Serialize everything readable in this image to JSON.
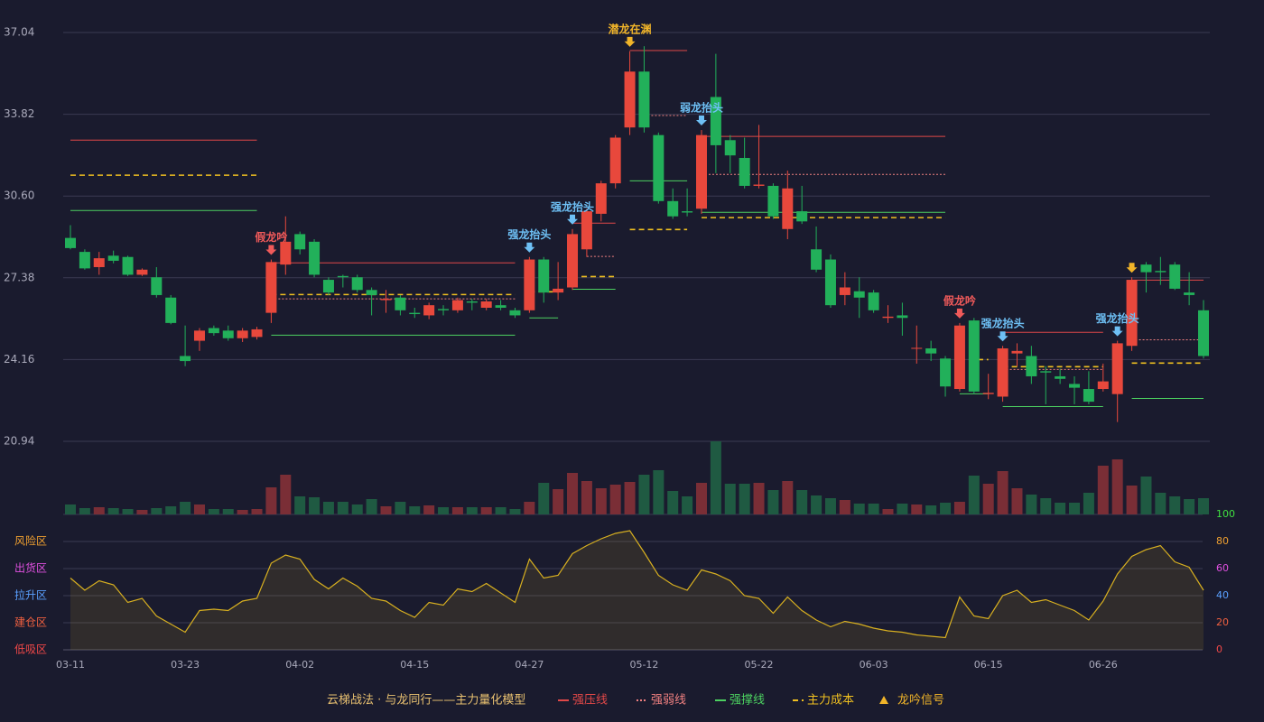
{
  "chart_data": {
    "type": "candlestick",
    "categories": [
      "03-11",
      null,
      null,
      null,
      null,
      null,
      null,
      null,
      "03-23",
      null,
      null,
      null,
      null,
      null,
      null,
      null,
      "04-02",
      null,
      null,
      null,
      null,
      null,
      null,
      null,
      "04-15",
      null,
      null,
      null,
      null,
      null,
      null,
      null,
      "04-27",
      null,
      null,
      null,
      null,
      null,
      null,
      null,
      "05-12",
      null,
      null,
      null,
      null,
      null,
      null,
      null,
      "05-22",
      null,
      null,
      null,
      null,
      null,
      null,
      null,
      "06-03",
      null,
      null,
      null,
      null,
      null,
      null,
      null,
      "06-15",
      null,
      null,
      null,
      null,
      null,
      null,
      null,
      "06-26",
      null,
      null,
      null,
      null,
      null,
      null,
      null
    ],
    "open": [
      28.95,
      28.4,
      27.8,
      28.25,
      28.2,
      27.5,
      27.4,
      26.6,
      24.3,
      24.9,
      25.4,
      25.3,
      25.0,
      25.05,
      26.0,
      27.9,
      29.1,
      28.8,
      27.3,
      27.45,
      27.4,
      26.9,
      26.5,
      26.6,
      26.0,
      25.9,
      26.15,
      26.1,
      26.45,
      26.2,
      26.3,
      26.1,
      26.1,
      28.1,
      26.8,
      27.0,
      28.5,
      29.9,
      31.1,
      33.3,
      35.5,
      33.0,
      30.4,
      30.0,
      30.1,
      34.5,
      32.8,
      32.1,
      31.0,
      31.0,
      29.3,
      30.0,
      28.5,
      28.1,
      26.7,
      26.85,
      26.8,
      25.8,
      25.9,
      24.6,
      24.6,
      24.2,
      23.0,
      25.7,
      22.8,
      22.7,
      24.4,
      24.3,
      23.7,
      23.5,
      23.2,
      23.0,
      23.0,
      22.8,
      24.7,
      27.9,
      27.65,
      27.9,
      26.8,
      26.1
    ],
    "close": [
      28.55,
      27.75,
      28.15,
      28.05,
      27.5,
      27.7,
      26.7,
      25.6,
      24.1,
      25.3,
      25.2,
      25.0,
      25.3,
      25.35,
      28.0,
      28.8,
      28.5,
      27.5,
      26.8,
      27.4,
      26.9,
      26.7,
      26.55,
      26.1,
      25.95,
      26.3,
      26.1,
      26.5,
      26.4,
      26.45,
      26.2,
      25.9,
      28.1,
      26.8,
      26.95,
      29.1,
      30.0,
      31.1,
      32.9,
      35.5,
      33.3,
      30.4,
      29.8,
      29.95,
      33.0,
      32.6,
      32.2,
      31.0,
      31.05,
      29.8,
      30.9,
      29.6,
      27.7,
      26.3,
      27.0,
      26.6,
      26.1,
      25.85,
      25.8,
      24.62,
      24.4,
      23.1,
      25.5,
      22.9,
      22.85,
      24.6,
      24.5,
      23.5,
      23.65,
      23.4,
      23.05,
      22.5,
      23.3,
      24.8,
      27.3,
      27.6,
      27.6,
      26.95,
      26.7,
      24.3
    ],
    "high": [
      29.45,
      28.5,
      28.4,
      28.45,
      28.25,
      27.75,
      27.8,
      26.7,
      25.5,
      25.4,
      25.5,
      25.5,
      25.4,
      25.45,
      28.1,
      29.8,
      29.2,
      28.9,
      27.4,
      27.5,
      27.5,
      27.0,
      26.9,
      26.7,
      26.2,
      26.4,
      26.3,
      26.6,
      26.55,
      26.55,
      26.5,
      26.2,
      28.2,
      28.2,
      28.0,
      29.3,
      30.1,
      31.2,
      33.0,
      36.3,
      36.5,
      33.1,
      30.9,
      30.9,
      33.2,
      36.2,
      33.0,
      32.9,
      33.4,
      31.1,
      31.6,
      31.0,
      29.4,
      28.3,
      27.6,
      27.4,
      26.9,
      26.3,
      26.4,
      25.5,
      24.9,
      24.3,
      25.6,
      25.8,
      23.6,
      24.7,
      24.8,
      24.7,
      23.9,
      23.8,
      23.5,
      23.7,
      24.0,
      24.9,
      27.4,
      28.0,
      28.2,
      28.0,
      27.6,
      26.5
    ],
    "low": [
      28.5,
      27.7,
      27.5,
      27.95,
      27.45,
      27.45,
      26.6,
      25.55,
      23.9,
      24.5,
      25.1,
      24.9,
      24.85,
      24.95,
      25.6,
      27.5,
      28.3,
      27.4,
      26.7,
      27.0,
      26.8,
      25.9,
      26.0,
      25.9,
      25.8,
      25.75,
      25.9,
      26.0,
      26.1,
      26.1,
      26.1,
      25.8,
      26.0,
      26.4,
      26.5,
      26.9,
      28.2,
      29.6,
      30.9,
      33.0,
      33.1,
      30.3,
      29.7,
      29.8,
      29.9,
      31.5,
      31.5,
      30.9,
      30.9,
      29.7,
      28.9,
      29.5,
      27.6,
      26.2,
      26.3,
      25.8,
      26.0,
      25.6,
      25.1,
      24.0,
      24.1,
      22.7,
      22.9,
      22.8,
      22.6,
      22.5,
      23.9,
      23.2,
      22.4,
      23.2,
      22.4,
      22.4,
      22.9,
      21.7,
      24.5,
      26.8,
      27.1,
      26.9,
      26.3,
      24.2
    ],
    "up_color": "#e8483c",
    "down_color": "#22b05a",
    "ylim": [
      20.94,
      37.04
    ],
    "yticks": [
      20.94,
      24.16,
      27.38,
      {
        "value": 30.6,
        "label": "30.60"
      },
      33.82,
      37.04
    ],
    "grid": true,
    "volume": {
      "values": [
        11,
        7,
        8,
        7,
        6,
        5,
        7,
        9,
        14,
        11,
        6,
        6,
        5,
        6,
        30,
        44,
        20,
        19,
        14,
        14,
        11,
        17,
        9,
        14,
        9,
        10,
        8,
        8,
        8,
        8,
        8,
        6,
        14,
        35,
        28,
        46,
        37,
        29,
        33,
        36,
        44,
        49,
        26,
        20,
        35,
        81,
        34,
        34,
        35,
        27,
        37,
        27,
        21,
        18,
        16,
        12,
        12,
        6,
        12,
        11,
        10,
        13,
        14,
        43,
        34,
        48,
        29,
        22,
        18,
        13,
        13,
        24,
        54,
        61,
        32,
        42,
        24,
        20,
        17,
        18
      ],
      "ylim": [
        0,
        81
      ],
      "up_color": "#7a2e36",
      "down_color": "#1f5a42"
    },
    "indicator": {
      "values": [
        53,
        44,
        51,
        48,
        35,
        38,
        25,
        19,
        13,
        29,
        30,
        29,
        36,
        38,
        64,
        70,
        67,
        52,
        45,
        53,
        47,
        38,
        36,
        29,
        24,
        35,
        33,
        45,
        43,
        49,
        42,
        35,
        67,
        53,
        55,
        71,
        77,
        82,
        86,
        88,
        72,
        55,
        48,
        44,
        59,
        56,
        51,
        40,
        38,
        27,
        39,
        29,
        22,
        17,
        21,
        19,
        16,
        14,
        13,
        11,
        10,
        9,
        39,
        25,
        23,
        40,
        44,
        35,
        37,
        33,
        29,
        22,
        36,
        56,
        69,
        74,
        77,
        65,
        61,
        44
      ],
      "color": "#d8b020",
      "ylim": [
        0,
        100
      ],
      "yticks": [
        0,
        20,
        40,
        60,
        80,
        100
      ],
      "ytick_colors": [
        "#f04848",
        "#f06040",
        "#5aa0ff",
        "#e050e0",
        "#f0a030",
        "#40e040"
      ],
      "zones": [
        {
          "label": "低吸区",
          "value": 0,
          "color": "#f04848"
        },
        {
          "label": "建仓区",
          "value": 20,
          "color": "#f06040"
        },
        {
          "label": "拉升区",
          "value": 40,
          "color": "#5aa0ff"
        },
        {
          "label": "出货区",
          "value": 60,
          "color": "#e050e0"
        },
        {
          "label": "风险区",
          "value": 80,
          "color": "#f0a030"
        }
      ]
    },
    "levels": [
      {
        "name": "强压线",
        "color": "#e04848",
        "style": "solid",
        "segments": [
          {
            "start": 0,
            "end": 13,
            "value": 32.8
          },
          {
            "start": 14,
            "end": 31,
            "value": 27.97
          },
          {
            "start": 35,
            "end": 38,
            "value": 29.53
          },
          {
            "start": 39,
            "end": 43,
            "value": 36.33
          },
          {
            "start": 44,
            "end": 61,
            "value": 32.95
          },
          {
            "start": 65,
            "end": 72,
            "value": 25.23
          },
          {
            "start": 74,
            "end": 79,
            "value": 27.29
          }
        ]
      },
      {
        "name": "强弱线",
        "color": "#f08080",
        "style": "dotted",
        "segments": [
          {
            "start": 14,
            "end": 31,
            "value": 26.55
          },
          {
            "start": 36,
            "end": 38,
            "value": 28.22
          },
          {
            "start": 40,
            "end": 43,
            "value": 33.77
          },
          {
            "start": 44,
            "end": 61,
            "value": 31.45
          },
          {
            "start": 65,
            "end": 72,
            "value": 23.77
          },
          {
            "start": 74,
            "end": 79,
            "value": 24.94
          }
        ]
      },
      {
        "name": "强撑线",
        "color": "#4cd060",
        "style": "solid",
        "segments": [
          {
            "start": 0,
            "end": 13,
            "value": 30.03
          },
          {
            "start": 14,
            "end": 31,
            "value": 25.12
          },
          {
            "start": 32,
            "end": 34,
            "value": 25.8
          },
          {
            "start": 35,
            "end": 38,
            "value": 26.93
          },
          {
            "start": 39,
            "end": 43,
            "value": 31.2
          },
          {
            "start": 44,
            "end": 61,
            "value": 29.96
          },
          {
            "start": 62,
            "end": 64,
            "value": 22.81
          },
          {
            "start": 65,
            "end": 72,
            "value": 22.31
          },
          {
            "start": 74,
            "end": 79,
            "value": 22.63
          }
        ]
      },
      {
        "name": "主力成本",
        "color": "#f0c020",
        "style": "dashed",
        "segments": [
          {
            "start": 0,
            "end": 13,
            "value": 31.42
          },
          {
            "start": 14,
            "end": 31,
            "value": 26.72
          },
          {
            "start": 32,
            "end": 34,
            "value": 26.83
          },
          {
            "start": 35,
            "end": 38,
            "value": 27.43
          },
          {
            "start": 39,
            "end": 43,
            "value": 29.28
          },
          {
            "start": 44,
            "end": 61,
            "value": 29.75
          },
          {
            "start": 62,
            "end": 64,
            "value": 24.16
          },
          {
            "start": 65,
            "end": 72,
            "value": 23.88
          },
          {
            "start": 74,
            "end": 79,
            "value": 24.02
          }
        ]
      }
    ],
    "signal_legend": {
      "name": "龙吟信号",
      "color": "#f0b429"
    },
    "signals": [
      {
        "index": 14,
        "label": "假龙吟",
        "color": "#f05a5a"
      },
      {
        "index": 32,
        "label": "强龙抬头",
        "color": "#6ec0f5"
      },
      {
        "index": 35,
        "label": "强龙抬头",
        "color": "#6ec0f5"
      },
      {
        "index": 39,
        "label": "潜龙在渊",
        "color": "#f0b429"
      },
      {
        "index": 44,
        "label": "弱龙抬头",
        "color": "#6ec0f5"
      },
      {
        "index": 62,
        "label": "假龙吟",
        "color": "#f05a5a"
      },
      {
        "index": 65,
        "label": "强龙抬头",
        "color": "#6ec0f5"
      },
      {
        "index": 73,
        "label": "强龙抬头",
        "color": "#6ec0f5"
      },
      {
        "index": 74,
        "color": "#f0b429"
      }
    ],
    "legend_title": "云梯战法 · 与龙同行——主力量化模型"
  }
}
